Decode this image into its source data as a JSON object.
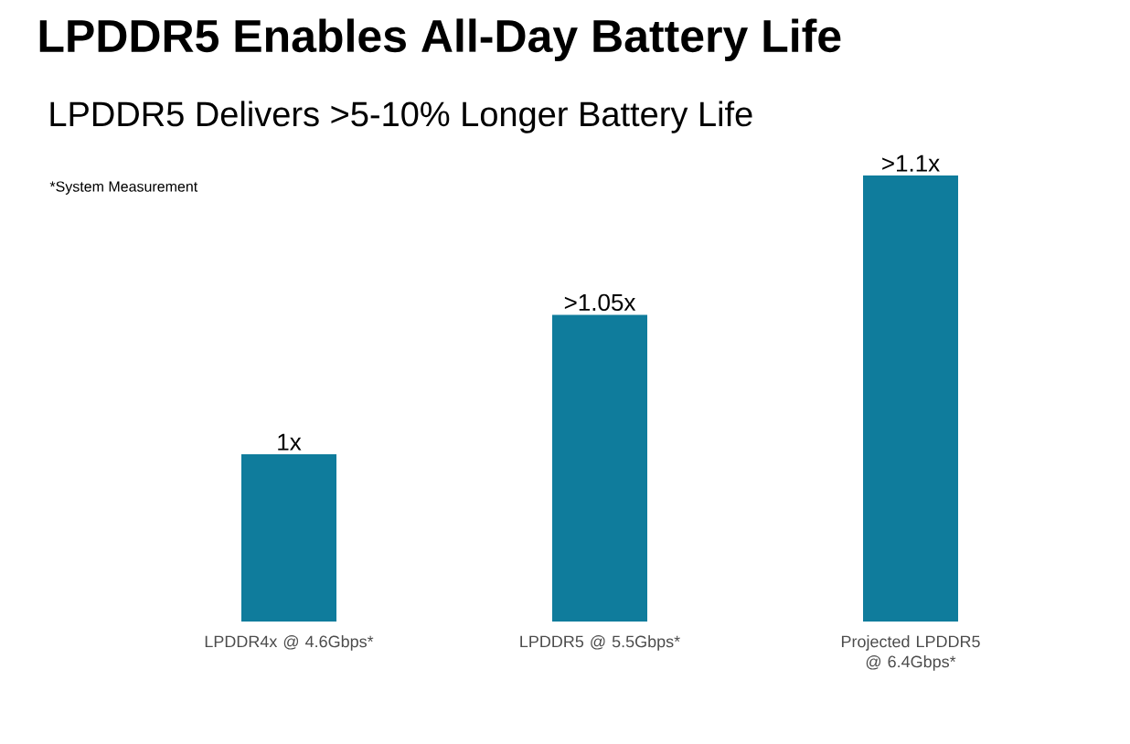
{
  "chart_data": {
    "type": "bar",
    "title": "LPDDR5 Enables All-Day Battery Life",
    "subtitle": "LPDDR5 Delivers >5-10% Longer Battery Life",
    "annotations": [
      "*System Measurement"
    ],
    "categories": [
      "LPDDR4x @ 4.6Gbps*",
      "LPDDR5 @ 5.5Gbps*",
      "Projected LPDDR5 @ 6.4Gbps*"
    ],
    "values": [
      1,
      1.05,
      1.1
    ],
    "ylim": [
      0.94,
      1.1
    ],
    "tick_labels": "x",
    "value_labels": [
      "1x",
      ">1.05x",
      ">1.1x"
    ],
    "color": "#0f7c9c"
  }
}
